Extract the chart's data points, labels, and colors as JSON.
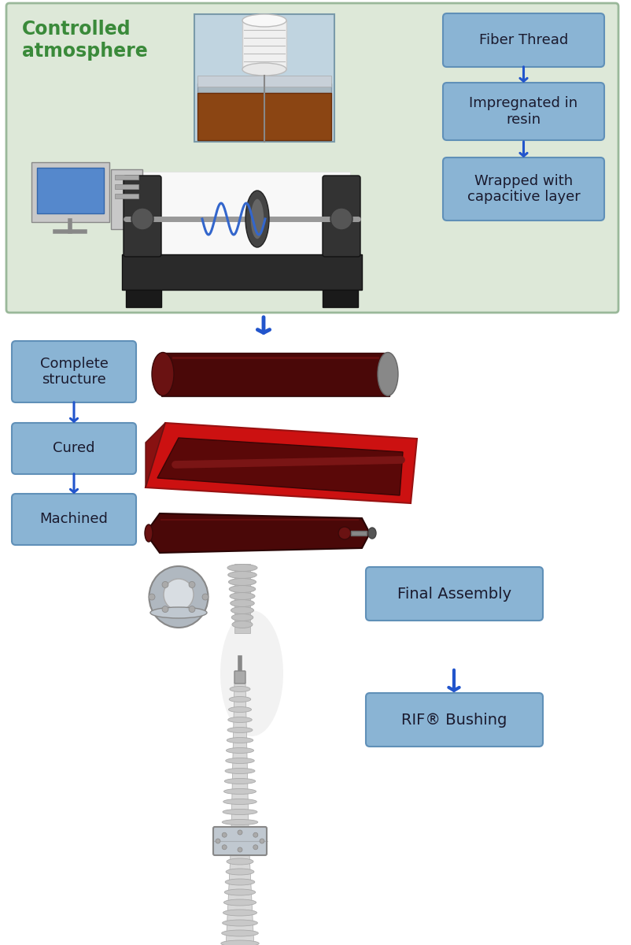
{
  "bg_color": "#ffffff",
  "top_section_bg": "#dde8d8",
  "top_section_border": "#9ab89a",
  "box_color": "#8ab4d4",
  "box_border": "#6090b8",
  "box_text_color": "#1a1a2e",
  "arrow_color": "#2255cc",
  "title_text": "Controlled\natmosphere",
  "title_color": "#3a8a3a",
  "boxes_right": [
    "Fiber Thread",
    "Impregnated in\nresin",
    "Wrapped with\ncapacitive layer"
  ],
  "boxes_left": [
    "Complete\nstructure",
    "Cured",
    "Machined"
  ],
  "box_final": "Final Assembly",
  "box_rif": "RIF® Bushing",
  "font_size_title": 17,
  "font_size_box": 13
}
